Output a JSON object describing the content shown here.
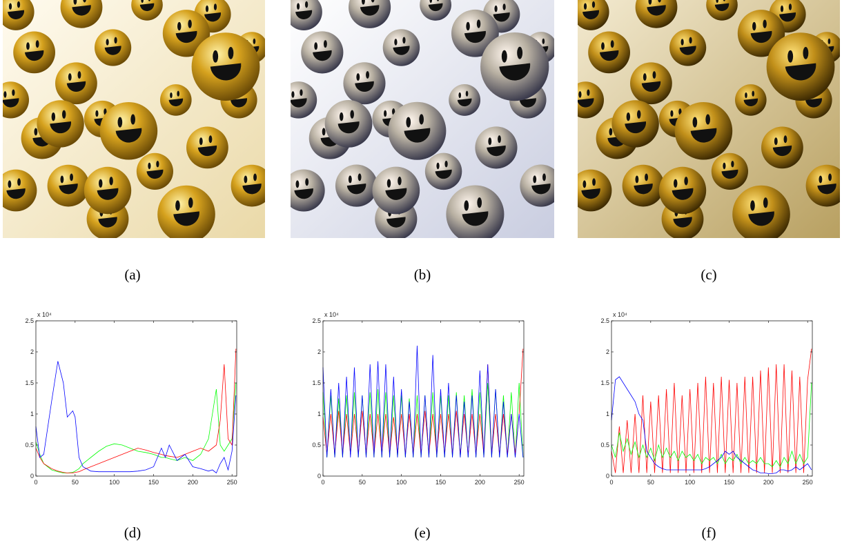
{
  "images": [
    {
      "caption": "(a)"
    },
    {
      "caption": "(b)"
    },
    {
      "caption": "(c)"
    }
  ],
  "chart_data": [
    {
      "type": "line",
      "caption": "(d)",
      "y_multiplier": "x 10⁴",
      "x": [
        0,
        5,
        10,
        20,
        28,
        35,
        40,
        47,
        50,
        55,
        60,
        70,
        80,
        90,
        100,
        110,
        120,
        130,
        140,
        150,
        160,
        165,
        170,
        180,
        190,
        200,
        210,
        220,
        225,
        230,
        235,
        240,
        245,
        250,
        255
      ],
      "series": [
        {
          "color": "#00ff00",
          "values": [
            0.55,
            0.35,
            0.2,
            0.1,
            0.07,
            0.05,
            0.05,
            0.06,
            0.08,
            0.12,
            0.2,
            0.3,
            0.4,
            0.48,
            0.52,
            0.5,
            0.45,
            0.4,
            0.38,
            0.35,
            0.3,
            0.3,
            0.28,
            0.25,
            0.3,
            0.25,
            0.35,
            0.6,
            1.0,
            1.4,
            0.5,
            0.4,
            0.5,
            0.6,
            1.5
          ]
        },
        {
          "color": "#ff0000",
          "values": [
            0.45,
            0.3,
            0.2,
            0.12,
            0.08,
            0.06,
            0.05,
            0.05,
            0.06,
            0.07,
            0.1,
            0.15,
            0.2,
            0.25,
            0.3,
            0.35,
            0.4,
            0.45,
            0.42,
            0.38,
            0.35,
            0.33,
            0.32,
            0.3,
            0.35,
            0.4,
            0.45,
            0.4,
            0.45,
            0.5,
            0.9,
            1.8,
            0.6,
            0.5,
            2.05
          ]
        },
        {
          "color": "#0000ff",
          "values": [
            0.8,
            0.3,
            0.35,
            1.2,
            1.85,
            1.5,
            0.95,
            1.05,
            0.95,
            0.3,
            0.15,
            0.08,
            0.07,
            0.07,
            0.07,
            0.07,
            0.07,
            0.08,
            0.1,
            0.15,
            0.45,
            0.3,
            0.5,
            0.25,
            0.35,
            0.15,
            0.12,
            0.08,
            0.1,
            0.05,
            0.2,
            0.3,
            0.1,
            0.4,
            1.3
          ]
        }
      ],
      "xlim": [
        0,
        256
      ],
      "xticks": [
        0,
        50,
        100,
        150,
        200,
        250
      ],
      "ylim": [
        0,
        2.5
      ],
      "yticks": [
        0,
        0.5,
        1,
        1.5,
        2,
        2.5
      ]
    },
    {
      "type": "line",
      "caption": "(e)",
      "y_multiplier": "x 10⁴",
      "x": [
        0,
        5,
        10,
        15,
        20,
        25,
        30,
        35,
        40,
        45,
        50,
        55,
        60,
        65,
        70,
        75,
        80,
        85,
        90,
        95,
        100,
        105,
        110,
        115,
        120,
        125,
        130,
        135,
        140,
        145,
        150,
        155,
        160,
        165,
        170,
        175,
        180,
        185,
        190,
        195,
        200,
        205,
        210,
        215,
        220,
        225,
        230,
        235,
        240,
        245,
        250,
        255
      ],
      "series": [
        {
          "color": "#00ff00",
          "values": [
            1.35,
            0.3,
            1.3,
            0.3,
            1.25,
            0.3,
            1.3,
            0.35,
            1.35,
            0.3,
            1.3,
            0.3,
            1.35,
            0.3,
            1.4,
            0.3,
            1.35,
            0.3,
            1.3,
            0.3,
            1.3,
            0.3,
            1.25,
            0.3,
            1.3,
            0.3,
            1.3,
            0.3,
            1.35,
            0.3,
            1.3,
            0.3,
            1.3,
            0.3,
            1.35,
            0.3,
            1.3,
            0.3,
            1.4,
            0.3,
            1.35,
            0.3,
            1.5,
            0.3,
            1.4,
            0.3,
            1.3,
            0.3,
            1.35,
            0.3,
            1.5,
            0.3
          ]
        },
        {
          "color": "#ff0000",
          "values": [
            0.95,
            0.35,
            1.0,
            0.35,
            1.05,
            0.35,
            1.0,
            0.35,
            1.0,
            0.35,
            1.05,
            0.35,
            1.0,
            0.35,
            1.0,
            0.35,
            1.0,
            0.35,
            0.95,
            0.35,
            1.0,
            0.35,
            1.0,
            0.35,
            1.0,
            0.35,
            1.05,
            0.35,
            1.0,
            0.35,
            1.0,
            0.35,
            1.0,
            0.35,
            1.05,
            0.35,
            1.0,
            0.35,
            1.0,
            0.35,
            1.0,
            0.35,
            1.8,
            0.35,
            1.0,
            0.35,
            1.0,
            0.35,
            1.0,
            0.35,
            1.0,
            2.05
          ]
        },
        {
          "color": "#0000ff",
          "values": [
            1.75,
            0.3,
            1.4,
            0.3,
            1.5,
            0.3,
            1.6,
            0.3,
            1.75,
            0.3,
            1.3,
            0.3,
            1.8,
            0.3,
            1.85,
            0.3,
            1.8,
            0.3,
            1.6,
            0.3,
            1.4,
            0.3,
            1.2,
            0.3,
            2.1,
            0.3,
            1.3,
            0.3,
            1.95,
            0.3,
            1.4,
            0.3,
            1.5,
            0.3,
            1.3,
            0.3,
            1.2,
            0.3,
            1.3,
            0.3,
            1.7,
            0.3,
            1.8,
            0.3,
            1.4,
            0.3,
            1.2,
            0.3,
            1.0,
            0.3,
            1.0,
            0.3
          ]
        }
      ],
      "xlim": [
        0,
        256
      ],
      "xticks": [
        0,
        50,
        100,
        150,
        200,
        250
      ],
      "ylim": [
        0,
        2.5
      ],
      "yticks": [
        0,
        0.5,
        1,
        1.5,
        2,
        2.5
      ]
    },
    {
      "type": "line",
      "caption": "(f)",
      "y_multiplier": "x 10⁴",
      "x": [
        0,
        5,
        10,
        15,
        20,
        25,
        30,
        35,
        40,
        45,
        50,
        55,
        60,
        65,
        70,
        75,
        80,
        85,
        90,
        95,
        100,
        105,
        110,
        115,
        120,
        125,
        130,
        135,
        140,
        145,
        150,
        155,
        160,
        165,
        170,
        175,
        180,
        185,
        190,
        195,
        200,
        205,
        210,
        215,
        220,
        225,
        230,
        235,
        240,
        245,
        250,
        255
      ],
      "series": [
        {
          "color": "#ff0000",
          "values": [
            0.4,
            0.05,
            0.8,
            0.05,
            0.9,
            0.05,
            1.0,
            0.05,
            1.3,
            0.05,
            1.2,
            0.05,
            1.3,
            0.05,
            1.4,
            0.05,
            1.5,
            0.05,
            1.3,
            0.05,
            1.4,
            0.05,
            1.5,
            0.05,
            1.6,
            0.05,
            1.5,
            0.05,
            1.6,
            0.05,
            1.55,
            0.05,
            1.5,
            0.05,
            1.6,
            0.05,
            1.6,
            0.05,
            1.7,
            0.05,
            1.75,
            0.05,
            1.8,
            0.05,
            1.8,
            0.05,
            1.7,
            0.05,
            1.6,
            0.05,
            1.55,
            2.05
          ]
        },
        {
          "color": "#00ff00",
          "values": [
            0.5,
            0.3,
            0.7,
            0.4,
            0.6,
            0.35,
            0.55,
            0.3,
            0.5,
            0.3,
            0.45,
            0.25,
            0.5,
            0.3,
            0.45,
            0.3,
            0.4,
            0.25,
            0.4,
            0.3,
            0.35,
            0.25,
            0.35,
            0.2,
            0.3,
            0.25,
            0.3,
            0.2,
            0.35,
            0.2,
            0.3,
            0.25,
            0.35,
            0.2,
            0.3,
            0.2,
            0.25,
            0.2,
            0.3,
            0.2,
            0.2,
            0.15,
            0.25,
            0.15,
            0.3,
            0.2,
            0.4,
            0.2,
            0.35,
            0.2,
            0.3,
            1.5
          ]
        },
        {
          "color": "#0000ff",
          "values": [
            0.9,
            1.55,
            1.6,
            1.5,
            1.4,
            1.3,
            1.2,
            1.0,
            0.9,
            0.4,
            0.3,
            0.2,
            0.15,
            0.12,
            0.1,
            0.1,
            0.1,
            0.1,
            0.1,
            0.1,
            0.1,
            0.1,
            0.1,
            0.1,
            0.12,
            0.15,
            0.2,
            0.25,
            0.3,
            0.4,
            0.35,
            0.4,
            0.3,
            0.25,
            0.2,
            0.15,
            0.1,
            0.08,
            0.05,
            0.05,
            0.04,
            0.04,
            0.05,
            0.1,
            0.1,
            0.08,
            0.1,
            0.15,
            0.1,
            0.15,
            0.2,
            0.1
          ]
        }
      ],
      "xlim": [
        0,
        256
      ],
      "xticks": [
        0,
        50,
        100,
        150,
        200,
        250
      ],
      "ylim": [
        0,
        2.5
      ],
      "yticks": [
        0,
        0.5,
        1,
        1.5,
        2,
        2.5
      ]
    }
  ]
}
